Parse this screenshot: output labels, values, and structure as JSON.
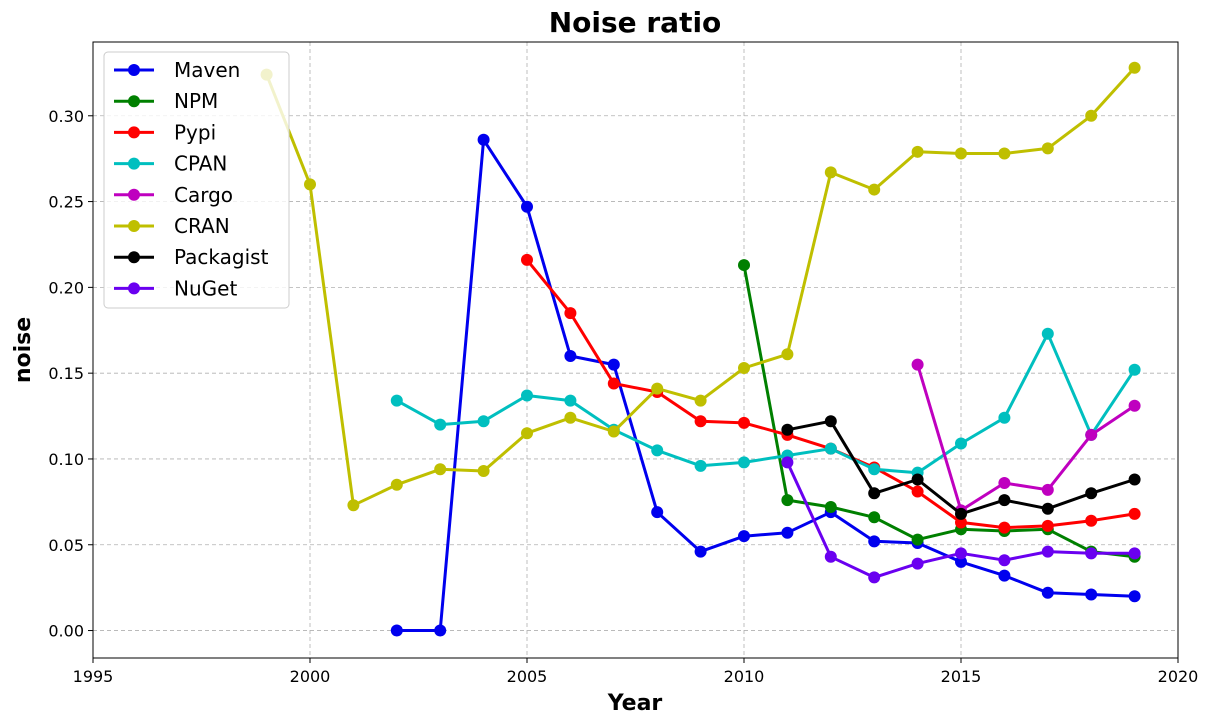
{
  "chart_data": {
    "type": "line",
    "title": "Noise ratio",
    "xlabel": "Year",
    "ylabel": "noise",
    "xlim": [
      1995,
      2020
    ],
    "ylim": [
      -0.016,
      0.343
    ],
    "xticks": [
      1995,
      2000,
      2005,
      2010,
      2015,
      2020
    ],
    "yticks": [
      0.0,
      0.05,
      0.1,
      0.15,
      0.2,
      0.25,
      0.3
    ],
    "ytick_labels": [
      "0.00",
      "0.05",
      "0.10",
      "0.15",
      "0.20",
      "0.25",
      "0.30"
    ],
    "grid": true,
    "legend_position": "top-left",
    "series": [
      {
        "name": "Maven",
        "color": "#0000ee",
        "x": [
          2002,
          2003,
          2004,
          2005,
          2006,
          2007,
          2008,
          2009,
          2010,
          2011,
          2012,
          2013,
          2014,
          2015,
          2016,
          2017,
          2018,
          2019
        ],
        "y": [
          0.0,
          0.0,
          0.286,
          0.247,
          0.16,
          0.155,
          0.069,
          0.046,
          0.055,
          0.057,
          0.069,
          0.052,
          0.051,
          0.04,
          0.032,
          0.022,
          0.021,
          0.02
        ]
      },
      {
        "name": "NPM",
        "color": "#008000",
        "x": [
          2010,
          2011,
          2012,
          2013,
          2014,
          2015,
          2016,
          2017,
          2018,
          2019
        ],
        "y": [
          0.213,
          0.076,
          0.072,
          0.066,
          0.053,
          0.059,
          0.058,
          0.059,
          0.046,
          0.043
        ]
      },
      {
        "name": "Pypi",
        "color": "#ff0000",
        "x": [
          2005,
          2006,
          2007,
          2008,
          2009,
          2010,
          2011,
          2012,
          2013,
          2014,
          2015,
          2016,
          2017,
          2018,
          2019
        ],
        "y": [
          0.216,
          0.185,
          0.144,
          0.139,
          0.122,
          0.121,
          0.114,
          0.106,
          0.095,
          0.081,
          0.063,
          0.06,
          0.061,
          0.064,
          0.068
        ]
      },
      {
        "name": "CPAN",
        "color": "#00bfbf",
        "x": [
          2002,
          2003,
          2004,
          2005,
          2006,
          2007,
          2008,
          2009,
          2010,
          2011,
          2012,
          2013,
          2014,
          2015,
          2016,
          2017,
          2018,
          2019
        ],
        "y": [
          0.134,
          0.12,
          0.122,
          0.137,
          0.134,
          0.117,
          0.105,
          0.096,
          0.098,
          0.102,
          0.106,
          0.094,
          0.092,
          0.109,
          0.124,
          0.173,
          0.114,
          0.152
        ]
      },
      {
        "name": "Cargo",
        "color": "#bf00bf",
        "x": [
          2014,
          2015,
          2016,
          2017,
          2018,
          2019
        ],
        "y": [
          0.155,
          0.07,
          0.086,
          0.082,
          0.114,
          0.131
        ]
      },
      {
        "name": "CRAN",
        "color": "#bfbf00",
        "x": [
          1999,
          2000,
          2001,
          2002,
          2003,
          2004,
          2005,
          2006,
          2007,
          2008,
          2009,
          2010,
          2011,
          2012,
          2013,
          2014,
          2015,
          2016,
          2017,
          2018,
          2019
        ],
        "y": [
          0.324,
          0.26,
          0.073,
          0.085,
          0.094,
          0.093,
          0.115,
          0.124,
          0.116,
          0.141,
          0.134,
          0.153,
          0.161,
          0.267,
          0.257,
          0.279,
          0.278,
          0.278,
          0.281,
          0.3,
          0.328
        ]
      },
      {
        "name": "Packagist",
        "color": "#000000",
        "x": [
          2011,
          2012,
          2013,
          2014,
          2015,
          2016,
          2017,
          2018,
          2019
        ],
        "y": [
          0.117,
          0.122,
          0.08,
          0.088,
          0.068,
          0.076,
          0.071,
          0.08,
          0.088
        ]
      },
      {
        "name": "NuGet",
        "color": "#6a00f0",
        "x": [
          2011,
          2012,
          2013,
          2014,
          2015,
          2016,
          2017,
          2018,
          2019
        ],
        "y": [
          0.098,
          0.043,
          0.031,
          0.039,
          0.045,
          0.041,
          0.046,
          0.045,
          0.045
        ]
      }
    ]
  }
}
